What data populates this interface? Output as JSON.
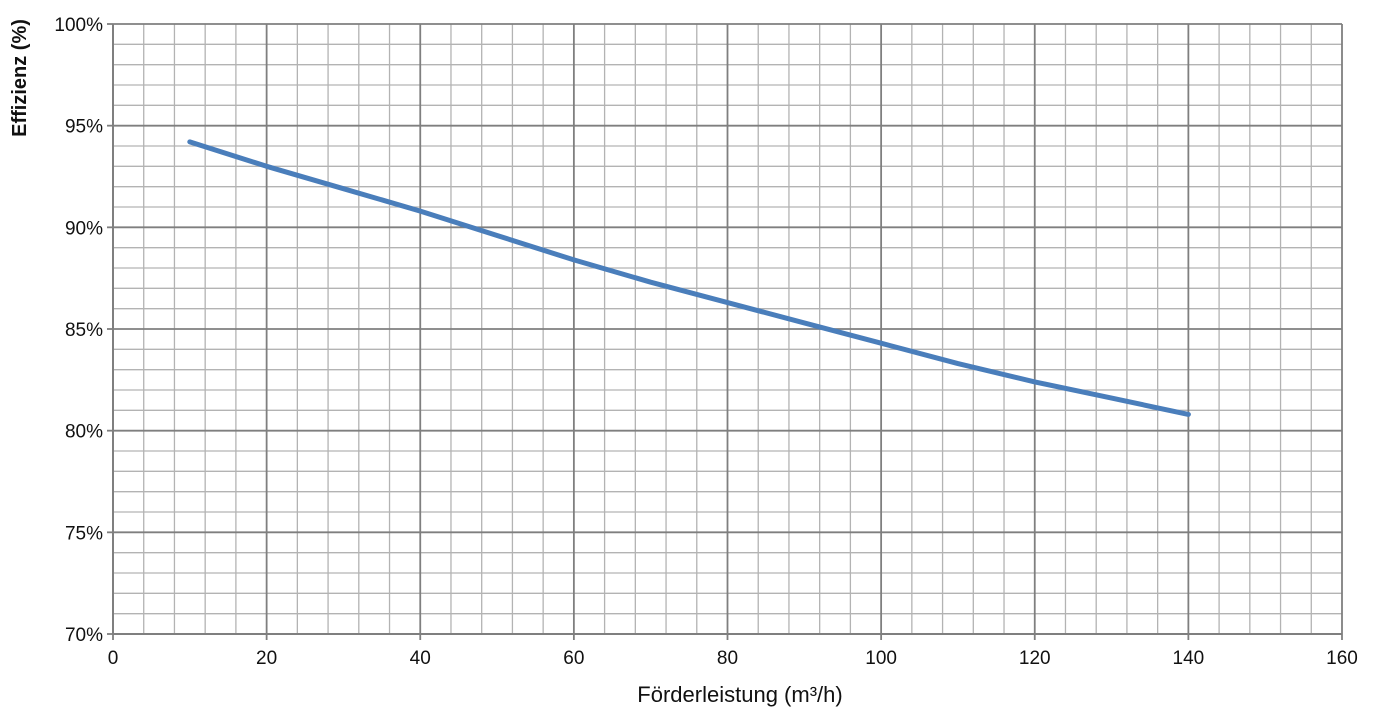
{
  "chart_data": {
    "type": "line",
    "xlabel": "Förderleistung (m³/h)",
    "ylabel": "Effizienz (%)",
    "xlim": [
      0,
      160
    ],
    "ylim": [
      70,
      100
    ],
    "x_ticks": [
      0,
      20,
      40,
      60,
      80,
      100,
      120,
      140,
      160
    ],
    "x_tick_labels": [
      "0",
      "20",
      "40",
      "60",
      "80",
      "100",
      "120",
      "140",
      "160"
    ],
    "y_ticks": [
      70,
      75,
      80,
      85,
      90,
      95,
      100
    ],
    "y_tick_labels": [
      "70%",
      "75%",
      "80%",
      "85%",
      "90%",
      "95%",
      "100%"
    ],
    "x_minor_step": 4,
    "y_minor_step": 1,
    "grid": true,
    "legend": "none",
    "series": [
      {
        "color": "#4a7ebb",
        "x": [
          10,
          20,
          30,
          40,
          50,
          60,
          70,
          80,
          90,
          100,
          110,
          120,
          130,
          140
        ],
        "y": [
          94.2,
          93.0,
          91.9,
          90.8,
          89.6,
          88.4,
          87.3,
          86.3,
          85.3,
          84.3,
          83.3,
          82.4,
          81.6,
          80.8
        ]
      }
    ]
  }
}
